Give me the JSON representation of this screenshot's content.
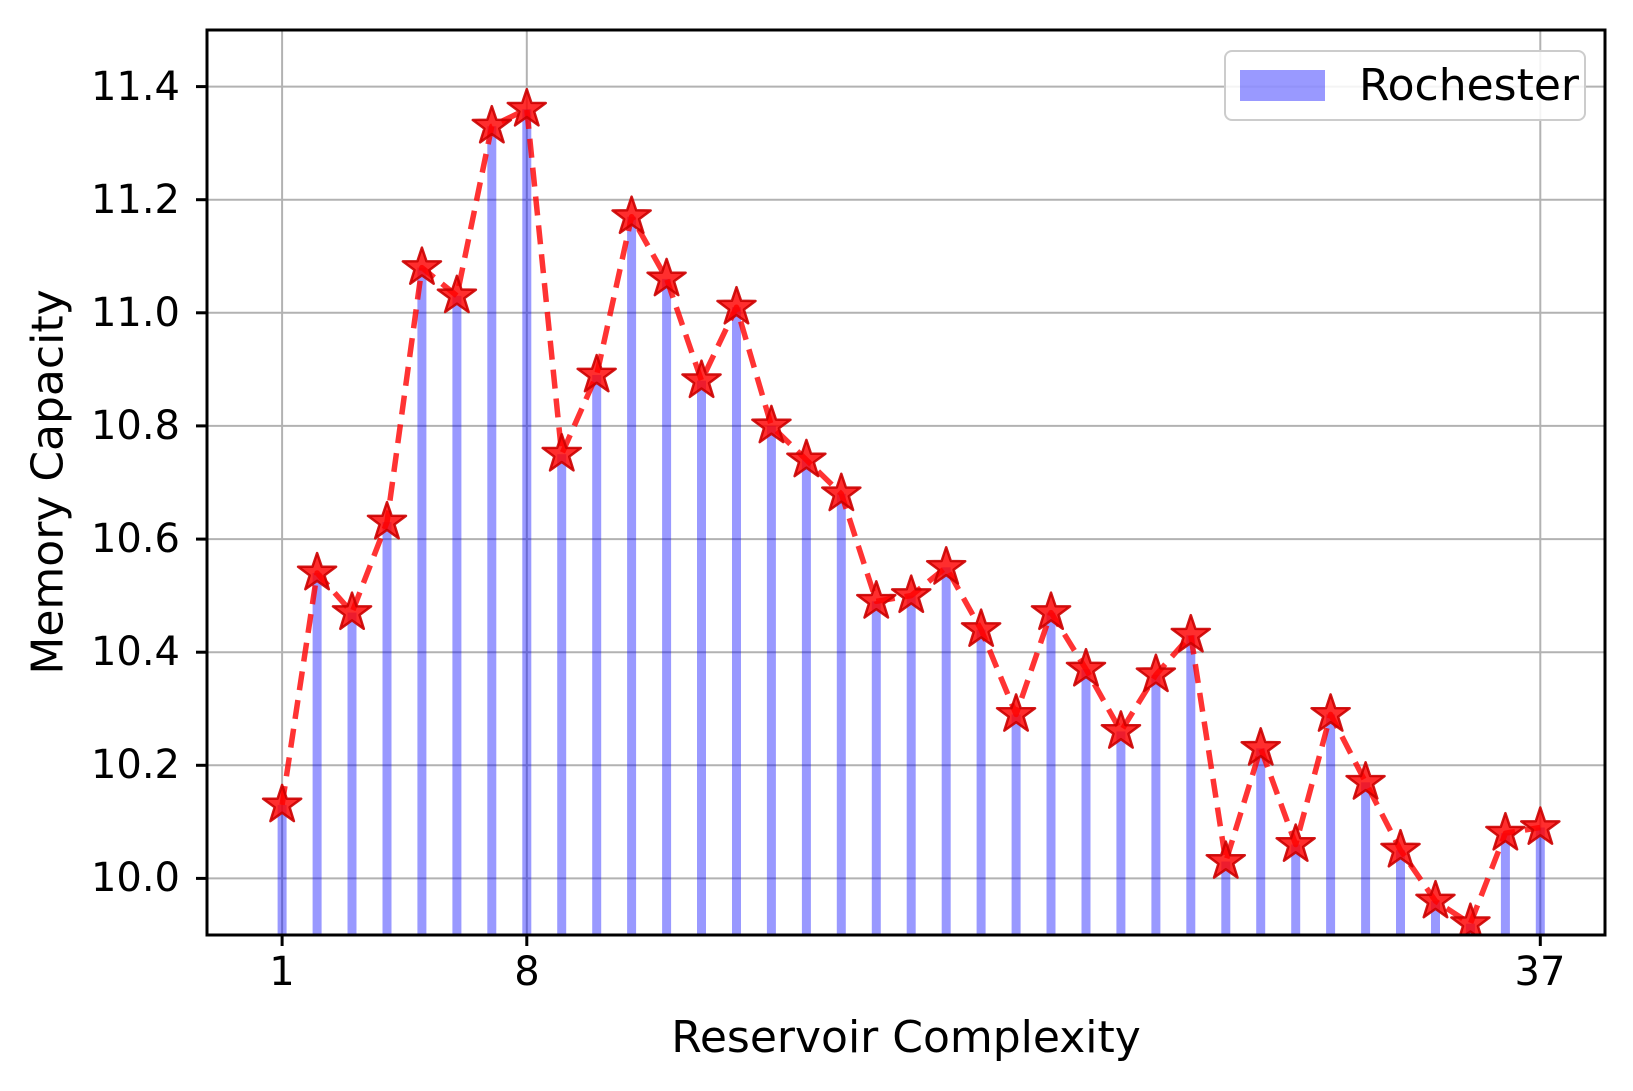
{
  "chart_data": {
    "type": "bar",
    "title": "",
    "xlabel": "Reservoir Complexity",
    "ylabel": "Memory Capacity",
    "x": [
      1,
      2,
      3,
      4,
      5,
      6,
      7,
      8,
      9,
      10,
      11,
      12,
      13,
      14,
      15,
      16,
      17,
      18,
      19,
      20,
      21,
      22,
      23,
      24,
      25,
      26,
      27,
      28,
      29,
      30,
      31,
      32,
      33,
      34,
      35,
      36,
      37
    ],
    "series": [
      {
        "name": "Rochester",
        "values": [
          10.13,
          10.54,
          10.47,
          10.63,
          11.08,
          11.03,
          11.33,
          11.36,
          10.75,
          10.89,
          11.17,
          11.06,
          10.88,
          11.01,
          10.8,
          10.74,
          10.68,
          10.49,
          10.5,
          10.55,
          10.44,
          10.29,
          10.47,
          10.37,
          10.26,
          10.36,
          10.43,
          10.03,
          10.23,
          10.06,
          10.29,
          10.17,
          10.05,
          9.96,
          9.92,
          10.08,
          10.09
        ]
      }
    ],
    "overlay": {
      "type": "line",
      "style": "dashed",
      "marker": "star",
      "follows_series": "Rochester"
    },
    "xticks": {
      "values": [
        1,
        8,
        37
      ],
      "labels": [
        "1",
        "8",
        "37"
      ]
    },
    "yticks": {
      "values": [
        10.0,
        10.2,
        10.4,
        10.6,
        10.8,
        11.0,
        11.2,
        11.4
      ],
      "labels": [
        "10.0",
        "10.2",
        "10.4",
        "10.6",
        "10.8",
        "11.0",
        "11.2",
        "11.4"
      ]
    },
    "xlim": [
      -1.15,
      38.85
    ],
    "ylim": [
      9.9,
      11.5
    ],
    "grid": true,
    "legend": {
      "label": "Rochester",
      "position": "upper-right"
    },
    "colors": {
      "bar": "#0000ff",
      "bar_alpha": 0.4,
      "line": "#ff0000",
      "line_alpha": 0.8,
      "marker_fill": "#ff0000",
      "marker_edge": "#cc0000",
      "grid": "#b2b2b2",
      "spine": "#000000",
      "background": "#ffffff"
    }
  }
}
